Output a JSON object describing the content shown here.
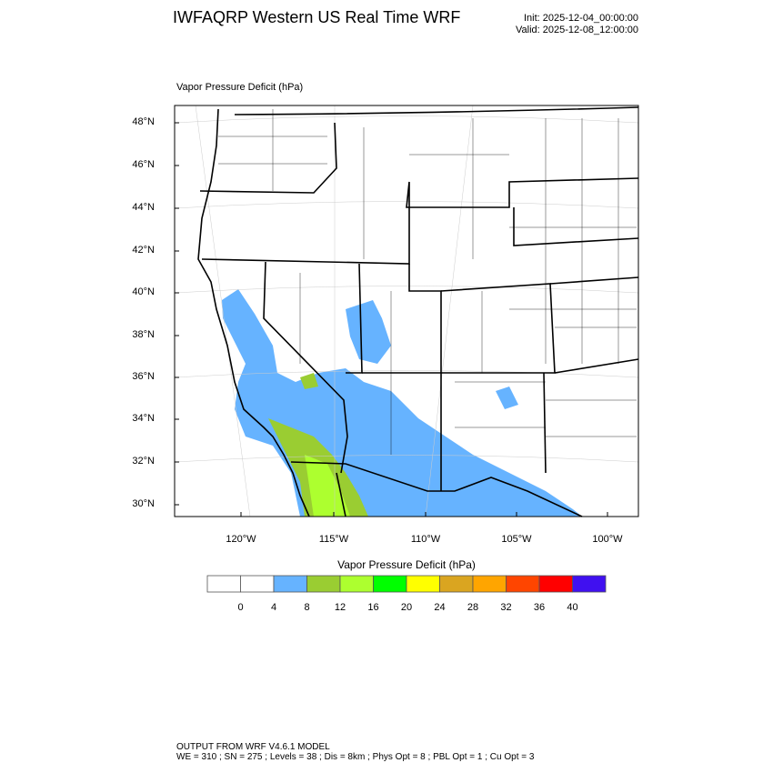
{
  "header": {
    "title": "IWFAQRP Western US Real Time WRF",
    "init": "Init: 2025-12-04_00:00:00",
    "valid": "Valid: 2025-12-08_12:00:00"
  },
  "map": {
    "field_title": "Vapor Pressure Deficit   (hPa)",
    "lat_labels": [
      "48°N",
      "46°N",
      "44°N",
      "42°N",
      "40°N",
      "38°N",
      "36°N",
      "34°N",
      "32°N",
      "30°N"
    ],
    "lon_labels": [
      "120°W",
      "115°W",
      "110°W",
      "105°W",
      "100°W"
    ],
    "fill_colors": {
      "4-8": "#66b3ff",
      "8-12": "#9acd32",
      "12-16": "#adff2f"
    }
  },
  "colorbar": {
    "title": "Vapor Pressure Deficit  (hPa)",
    "colors": [
      "#ffffff",
      "#ffffff",
      "#66b3ff",
      "#9acd32",
      "#adff2f",
      "#00ff00",
      "#ffff00",
      "#daa520",
      "#ffa500",
      "#ff4500",
      "#ff0000",
      "#4010f0"
    ],
    "labels": [
      "0",
      "4",
      "8",
      "12",
      "16",
      "20",
      "24",
      "28",
      "32",
      "36",
      "40"
    ]
  },
  "footer": {
    "line1": "OUTPUT FROM WRF V4.6.1 MODEL",
    "line2": "WE = 310 ; SN = 275 ; Levels = 38 ; Dis = 8km ; Phys Opt = 8 ; PBL Opt = 1 ; Cu Opt = 3"
  }
}
